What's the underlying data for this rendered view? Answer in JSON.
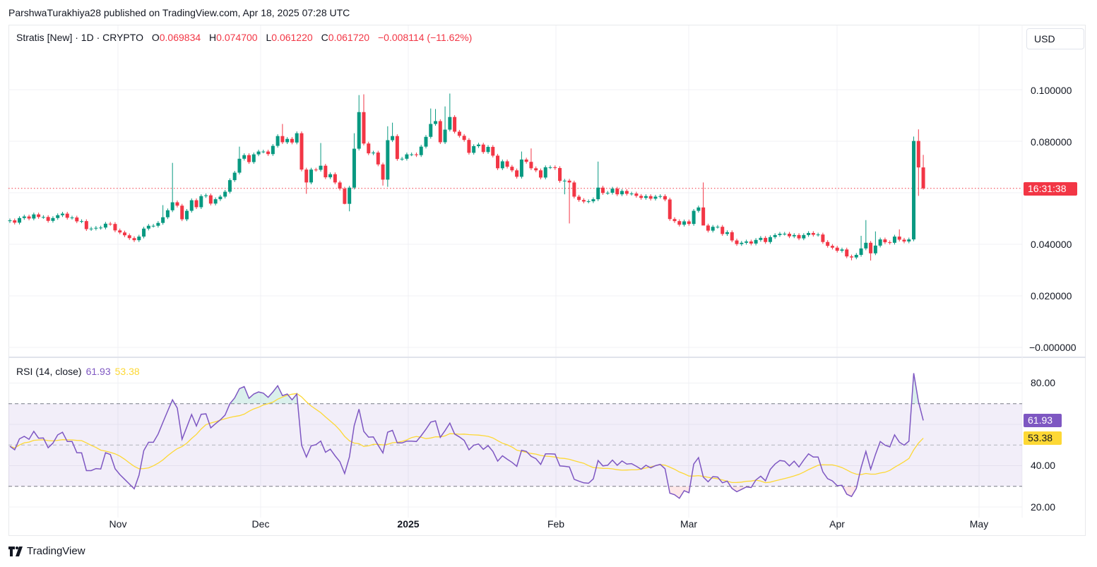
{
  "header": {
    "publisher": "ParshwaTurakhiya28 published on TradingView.com, Apr 18, 2025 07:28 UTC"
  },
  "legend": {
    "symbol": "Stratis [New] · 1D · CRYPTO",
    "o_label": "O",
    "o": "0.069834",
    "h_label": "H",
    "h": "0.074700",
    "l_label": "L",
    "l": "0.061220",
    "c_label": "C",
    "c": "0.061720",
    "change": "−0.008114 (−11.62%)"
  },
  "currency": "USD",
  "price_axis": [
    "0.100000",
    "0.080000",
    "0.040000",
    "0.020000",
    "−0.000000"
  ],
  "countdown": "16:31:38",
  "rsi": {
    "title": "RSI (14, close)",
    "value": "61.93",
    "ma": "53.38",
    "axis": [
      "80.00",
      "40.00",
      "20.00"
    ]
  },
  "time_axis": [
    "Nov",
    "Dec",
    "2025",
    "Feb",
    "Mar",
    "Apr",
    "May"
  ],
  "brand": "TradingView",
  "colors": {
    "up": "#089981",
    "down": "#f23645",
    "rsi": "#7e57c2",
    "rsi_ma": "#fdd835",
    "band": "#7e57c2"
  },
  "chart_data": {
    "type": "candlestick",
    "title": "Stratis [New] · 1D · CRYPTO",
    "ylim": [
      0,
      0.1
    ],
    "first_open": 0.049,
    "last_open": 0.069834,
    "close": [
      0.0493,
      0.0484,
      0.0502,
      0.0508,
      0.05,
      0.0516,
      0.0506,
      0.0506,
      0.0491,
      0.0502,
      0.0513,
      0.0519,
      0.0503,
      0.0504,
      0.0489,
      0.049,
      0.0459,
      0.0461,
      0.0464,
      0.0465,
      0.048,
      0.0479,
      0.0454,
      0.0446,
      0.0435,
      0.0424,
      0.0416,
      0.043,
      0.0461,
      0.0472,
      0.0472,
      0.0483,
      0.0505,
      0.0532,
      0.0563,
      0.055,
      0.0497,
      0.053,
      0.0571,
      0.0544,
      0.0587,
      0.059,
      0.0558,
      0.0575,
      0.0585,
      0.0604,
      0.0649,
      0.0678,
      0.0732,
      0.0746,
      0.0719,
      0.0749,
      0.076,
      0.076,
      0.075,
      0.0782,
      0.082,
      0.0796,
      0.0809,
      0.0795,
      0.0831,
      0.069,
      0.064,
      0.069,
      0.0689,
      0.0705,
      0.066,
      0.0672,
      0.064,
      0.0616,
      0.0557,
      0.062,
      0.0771,
      0.0913,
      0.0791,
      0.0753,
      0.0756,
      0.071,
      0.0651,
      0.0804,
      0.082,
      0.0731,
      0.0732,
      0.0749,
      0.0749,
      0.0746,
      0.0779,
      0.0817,
      0.0867,
      0.0878,
      0.0796,
      0.0845,
      0.0894,
      0.0837,
      0.0821,
      0.0805,
      0.0755,
      0.0781,
      0.0787,
      0.0758,
      0.0778,
      0.0744,
      0.0695,
      0.0722,
      0.0701,
      0.0687,
      0.0662,
      0.0729,
      0.072,
      0.0695,
      0.0687,
      0.0659,
      0.0699,
      0.0699,
      0.0696,
      0.0646,
      0.0647,
      0.064,
      0.0585,
      0.0572,
      0.0566,
      0.0567,
      0.0575,
      0.062,
      0.0599,
      0.06,
      0.0616,
      0.0594,
      0.0607,
      0.0596,
      0.0597,
      0.0588,
      0.058,
      0.0587,
      0.0577,
      0.0585,
      0.0587,
      0.0574,
      0.0498,
      0.049,
      0.0476,
      0.0489,
      0.0479,
      0.053,
      0.0543,
      0.0473,
      0.0453,
      0.0468,
      0.0468,
      0.044,
      0.0447,
      0.0415,
      0.0401,
      0.0406,
      0.0411,
      0.0403,
      0.0417,
      0.0425,
      0.0409,
      0.0428,
      0.0436,
      0.0441,
      0.0441,
      0.0431,
      0.0436,
      0.0423,
      0.0436,
      0.0444,
      0.0437,
      0.0438,
      0.0409,
      0.0394,
      0.0387,
      0.0375,
      0.038,
      0.0353,
      0.0349,
      0.0359,
      0.0384,
      0.0406,
      0.0365,
      0.0395,
      0.0419,
      0.0408,
      0.0406,
      0.043,
      0.0418,
      0.0411,
      0.0419,
      0.0801,
      0.069834,
      0.06172
    ],
    "high_overrides": {
      "32": 0.0552,
      "34": 0.0716,
      "48": 0.0779,
      "57": 0.0867,
      "65": 0.0793,
      "72": 0.0831,
      "73": 0.0979,
      "74": 0.0982,
      "79": 0.0858,
      "80": 0.0872,
      "88": 0.0927,
      "89": 0.0925,
      "91": 0.0935,
      "92": 0.0985,
      "107": 0.076,
      "109": 0.0772,
      "123": 0.0721,
      "145": 0.064,
      "178": 0.0433,
      "179": 0.0494,
      "181": 0.045,
      "186": 0.0458,
      "189": 0.0818,
      "190": 0.0846,
      "191": 0.0747
    },
    "low_overrides": {
      "62": 0.0596,
      "70": 0.0555,
      "71": 0.0528,
      "78": 0.0628,
      "79": 0.0623,
      "116": 0.0594,
      "117": 0.0481,
      "145": 0.0486,
      "176": 0.0338,
      "180": 0.0337,
      "190": 0.0588,
      "191": 0.06122
    },
    "default_wick": 0.0007,
    "rsi_period": 14,
    "rsi_levels": [
      70,
      50,
      30
    ],
    "rsi_ylim": [
      15,
      90
    ],
    "rsi_values": [
      49.4,
      47.7,
      53,
      54.2,
      52.8,
      56.6,
      53.3,
      53.4,
      48.7,
      50.9,
      54.9,
      56.2,
      51.7,
      51.7,
      46.3,
      46.2,
      37.6,
      37.6,
      38.6,
      38.4,
      46.3,
      45.4,
      38.5,
      35.7,
      33.4,
      31.1,
      28.8,
      35.4,
      47.3,
      51.3,
      51.3,
      55.3,
      61,
      66.5,
      71.9,
      67.9,
      52.8,
      58.7,
      64.8,
      59.2,
      64.9,
      65.1,
      58.3,
      60.3,
      62.2,
      64.5,
      70,
      72.8,
      77.3,
      78.3,
      72.6,
      74.7,
      75.7,
      75.1,
      73.1,
      75.7,
      78.7,
      73.9,
      74.7,
      71.9,
      74.7,
      49.9,
      44.2,
      49.6,
      50.2,
      51.9,
      46.5,
      48,
      44.8,
      41.9,
      36.2,
      44.2,
      59.4,
      67.4,
      56.6,
      53.8,
      53.9,
      49.9,
      46.2,
      56.2,
      57.1,
      51,
      51,
      51.9,
      51.9,
      51.7,
      54.5,
      57.6,
      61.1,
      61.7,
      53.7,
      57,
      60.6,
      55.3,
      53.9,
      52.2,
      47.7,
      49.9,
      50.5,
      47.9,
      49.7,
      46.9,
      42.2,
      44.8,
      43.1,
      41.6,
      39.7,
      47.5,
      46.9,
      44.5,
      43.4,
      40.6,
      45.7,
      45.7,
      45.6,
      39.9,
      39.7,
      39.4,
      33.4,
      32.5,
      31.7,
      31.5,
      33.6,
      42.5,
      39.9,
      40.2,
      42.7,
      40.2,
      42.3,
      40.8,
      41,
      39.7,
      38.3,
      40.2,
      38.9,
      40,
      40.6,
      38.5,
      26.7,
      25.9,
      24.2,
      27.9,
      26.9,
      40.8,
      43.9,
      34.5,
      32.2,
      34.7,
      34.5,
      31.7,
      32.5,
      29,
      27.4,
      28.5,
      29.7,
      29.4,
      33.1,
      34.9,
      32.7,
      38.2,
      40.8,
      42.5,
      42.2,
      39.9,
      42.2,
      39.4,
      42.7,
      45.7,
      44.2,
      44.2,
      37,
      33.7,
      32.6,
      30.3,
      30.5,
      26.2,
      25.1,
      29,
      39.1,
      46.9,
      38.3,
      45.4,
      51.7,
      49.9,
      49.1,
      54.9,
      51.4,
      49.9,
      51.9,
      84.8,
      70.9,
      61.93
    ]
  }
}
